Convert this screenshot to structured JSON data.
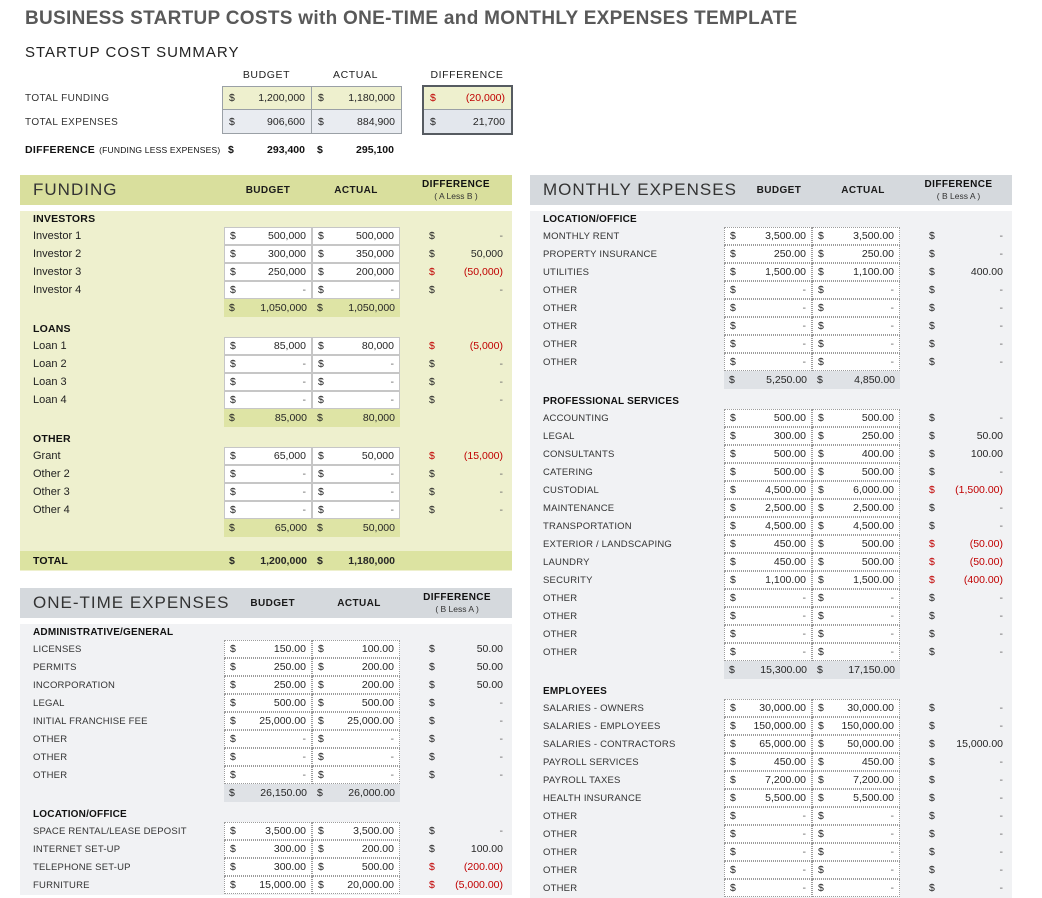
{
  "page": {
    "title": "BUSINESS STARTUP COSTS with ONE-TIME and MONTHLY EXPENSES TEMPLATE"
  },
  "currency": "$",
  "colors": {
    "title_gray": "#595959",
    "negative_red": "#c00000",
    "green_header": "#d9df9d",
    "green_body": "#eef0ce",
    "green_subtotal": "#dee4a5",
    "green_total": "#dce3a1",
    "gray_header": "#d5d9dd",
    "gray_body": "#f1f2f4",
    "gray_subtotal": "#dfe2e6",
    "summary_funding_fill": "#eef0ce",
    "summary_expenses_fill": "#e9ecf1"
  },
  "summary": {
    "title": "STARTUP COST SUMMARY",
    "col_headers": [
      "BUDGET",
      "ACTUAL",
      "DIFFERENCE"
    ],
    "rows": [
      {
        "label": "TOTAL FUNDING",
        "budget": "1,200,000",
        "actual": "1,180,000",
        "diff": "(20,000)",
        "diff_neg": true
      },
      {
        "label": "TOTAL EXPENSES",
        "budget": "906,600",
        "actual": "884,900",
        "diff": "21,700",
        "diff_neg": false
      }
    ],
    "difference_row": {
      "label": "DIFFERENCE",
      "sublabel": "(FUNDING LESS EXPENSES)",
      "budget": "293,400",
      "actual": "295,100"
    }
  },
  "sections": {
    "funding": {
      "title": "FUNDING",
      "theme": "green",
      "headers": {
        "budget": "BUDGET",
        "actual": "ACTUAL",
        "diff": "DIFFERENCE",
        "diff_sub": "( A Less B )"
      },
      "groups": [
        {
          "name": "INVESTORS",
          "rows": [
            {
              "label": "Investor 1",
              "b": "500,000",
              "a": "500,000",
              "d": "-",
              "neg": false
            },
            {
              "label": "Investor 2",
              "b": "300,000",
              "a": "350,000",
              "d": "50,000",
              "neg": false
            },
            {
              "label": "Investor 3",
              "b": "250,000",
              "a": "200,000",
              "d": "(50,000)",
              "neg": true
            },
            {
              "label": "Investor 4",
              "b": "-",
              "a": "-",
              "d": "-",
              "neg": false
            }
          ],
          "subtotal": {
            "b": "1,050,000",
            "a": "1,050,000"
          }
        },
        {
          "name": "LOANS",
          "rows": [
            {
              "label": "Loan 1",
              "b": "85,000",
              "a": "80,000",
              "d": "(5,000)",
              "neg": true
            },
            {
              "label": "Loan 2",
              "b": "-",
              "a": "-",
              "d": "-",
              "neg": false
            },
            {
              "label": "Loan 3",
              "b": "-",
              "a": "-",
              "d": "-",
              "neg": false
            },
            {
              "label": "Loan 4",
              "b": "-",
              "a": "-",
              "d": "-",
              "neg": false
            }
          ],
          "subtotal": {
            "b": "85,000",
            "a": "80,000"
          }
        },
        {
          "name": "OTHER",
          "rows": [
            {
              "label": "Grant",
              "b": "65,000",
              "a": "50,000",
              "d": "(15,000)",
              "neg": true
            },
            {
              "label": "Other 2",
              "b": "-",
              "a": "-",
              "d": "-",
              "neg": false
            },
            {
              "label": "Other 3",
              "b": "-",
              "a": "-",
              "d": "-",
              "neg": false
            },
            {
              "label": "Other 4",
              "b": "-",
              "a": "-",
              "d": "-",
              "neg": false
            }
          ],
          "subtotal": {
            "b": "65,000",
            "a": "50,000"
          }
        }
      ],
      "total": {
        "label": "TOTAL",
        "b": "1,200,000",
        "a": "1,180,000"
      }
    },
    "one_time": {
      "title": "ONE-TIME EXPENSES",
      "theme": "gray",
      "headers": {
        "budget": "BUDGET",
        "actual": "ACTUAL",
        "diff": "DIFFERENCE",
        "diff_sub": "( B Less A )"
      },
      "groups": [
        {
          "name": "ADMINISTRATIVE/GENERAL",
          "rows": [
            {
              "label": "LICENSES",
              "b": "150.00",
              "a": "100.00",
              "d": "50.00",
              "neg": false
            },
            {
              "label": "PERMITS",
              "b": "250.00",
              "a": "200.00",
              "d": "50.00",
              "neg": false
            },
            {
              "label": "INCORPORATION",
              "b": "250.00",
              "a": "200.00",
              "d": "50.00",
              "neg": false
            },
            {
              "label": "LEGAL",
              "b": "500.00",
              "a": "500.00",
              "d": "-",
              "neg": false
            },
            {
              "label": "INITIAL FRANCHISE FEE",
              "b": "25,000.00",
              "a": "25,000.00",
              "d": "-",
              "neg": false
            },
            {
              "label": "OTHER",
              "b": "-",
              "a": "-",
              "d": "-",
              "neg": false
            },
            {
              "label": "OTHER",
              "b": "-",
              "a": "-",
              "d": "-",
              "neg": false
            },
            {
              "label": "OTHER",
              "b": "-",
              "a": "-",
              "d": "-",
              "neg": false
            }
          ],
          "subtotal": {
            "b": "26,150.00",
            "a": "26,000.00"
          }
        },
        {
          "name": "LOCATION/OFFICE",
          "rows": [
            {
              "label": "SPACE RENTAL/LEASE DEPOSIT",
              "b": "3,500.00",
              "a": "3,500.00",
              "d": "-",
              "neg": false
            },
            {
              "label": "INTERNET SET-UP",
              "b": "300.00",
              "a": "200.00",
              "d": "100.00",
              "neg": false
            },
            {
              "label": "TELEPHONE SET-UP",
              "b": "300.00",
              "a": "500.00",
              "d": "(200.00)",
              "neg": true
            },
            {
              "label": "FURNITURE",
              "b": "15,000.00",
              "a": "20,000.00",
              "d": "(5,000.00)",
              "neg": true
            }
          ],
          "subtotal": null
        }
      ],
      "total": null
    },
    "monthly": {
      "title": "MONTHLY EXPENSES",
      "theme": "gray",
      "headers": {
        "budget": "BUDGET",
        "actual": "ACTUAL",
        "diff": "DIFFERENCE",
        "diff_sub": "( B Less A )"
      },
      "groups": [
        {
          "name": "LOCATION/OFFICE",
          "rows": [
            {
              "label": "MONTHLY RENT",
              "b": "3,500.00",
              "a": "3,500.00",
              "d": "-",
              "neg": false
            },
            {
              "label": "PROPERTY INSURANCE",
              "b": "250.00",
              "a": "250.00",
              "d": "-",
              "neg": false
            },
            {
              "label": "UTILITIES",
              "b": "1,500.00",
              "a": "1,100.00",
              "d": "400.00",
              "neg": false
            },
            {
              "label": "OTHER",
              "b": "-",
              "a": "-",
              "d": "-",
              "neg": false
            },
            {
              "label": "OTHER",
              "b": "-",
              "a": "-",
              "d": "-",
              "neg": false
            },
            {
              "label": "OTHER",
              "b": "-",
              "a": "-",
              "d": "-",
              "neg": false
            },
            {
              "label": "OTHER",
              "b": "-",
              "a": "-",
              "d": "-",
              "neg": false
            },
            {
              "label": "OTHER",
              "b": "-",
              "a": "-",
              "d": "-",
              "neg": false
            }
          ],
          "subtotal": {
            "b": "5,250.00",
            "a": "4,850.00"
          }
        },
        {
          "name": "PROFESSIONAL SERVICES",
          "rows": [
            {
              "label": "ACCOUNTING",
              "b": "500.00",
              "a": "500.00",
              "d": "-",
              "neg": false
            },
            {
              "label": "LEGAL",
              "b": "300.00",
              "a": "250.00",
              "d": "50.00",
              "neg": false
            },
            {
              "label": "CONSULTANTS",
              "b": "500.00",
              "a": "400.00",
              "d": "100.00",
              "neg": false
            },
            {
              "label": "CATERING",
              "b": "500.00",
              "a": "500.00",
              "d": "-",
              "neg": false
            },
            {
              "label": "CUSTODIAL",
              "b": "4,500.00",
              "a": "6,000.00",
              "d": "(1,500.00)",
              "neg": true
            },
            {
              "label": "MAINTENANCE",
              "b": "2,500.00",
              "a": "2,500.00",
              "d": "-",
              "neg": false
            },
            {
              "label": "TRANSPORTATION",
              "b": "4,500.00",
              "a": "4,500.00",
              "d": "-",
              "neg": false
            },
            {
              "label": "EXTERIOR / LANDSCAPING",
              "b": "450.00",
              "a": "500.00",
              "d": "(50.00)",
              "neg": true
            },
            {
              "label": "LAUNDRY",
              "b": "450.00",
              "a": "500.00",
              "d": "(50.00)",
              "neg": true
            },
            {
              "label": "SECURITY",
              "b": "1,100.00",
              "a": "1,500.00",
              "d": "(400.00)",
              "neg": true
            },
            {
              "label": "OTHER",
              "b": "-",
              "a": "-",
              "d": "-",
              "neg": false
            },
            {
              "label": "OTHER",
              "b": "-",
              "a": "-",
              "d": "-",
              "neg": false
            },
            {
              "label": "OTHER",
              "b": "-",
              "a": "-",
              "d": "-",
              "neg": false
            },
            {
              "label": "OTHER",
              "b": "-",
              "a": "-",
              "d": "-",
              "neg": false
            }
          ],
          "subtotal": {
            "b": "15,300.00",
            "a": "17,150.00"
          }
        },
        {
          "name": "EMPLOYEES",
          "rows": [
            {
              "label": "SALARIES - OWNERS",
              "b": "30,000.00",
              "a": "30,000.00",
              "d": "-",
              "neg": false
            },
            {
              "label": "SALARIES - EMPLOYEES",
              "b": "150,000.00",
              "a": "150,000.00",
              "d": "-",
              "neg": false
            },
            {
              "label": "SALARIES - CONTRACTORS",
              "b": "65,000.00",
              "a": "50,000.00",
              "d": "15,000.00",
              "neg": false
            },
            {
              "label": "PAYROLL SERVICES",
              "b": "450.00",
              "a": "450.00",
              "d": "-",
              "neg": false
            },
            {
              "label": "PAYROLL TAXES",
              "b": "7,200.00",
              "a": "7,200.00",
              "d": "-",
              "neg": false
            },
            {
              "label": "HEALTH INSURANCE",
              "b": "5,500.00",
              "a": "5,500.00",
              "d": "-",
              "neg": false
            },
            {
              "label": "OTHER",
              "b": "-",
              "a": "-",
              "d": "-",
              "neg": false
            },
            {
              "label": "OTHER",
              "b": "-",
              "a": "-",
              "d": "-",
              "neg": false
            },
            {
              "label": "OTHER",
              "b": "-",
              "a": "-",
              "d": "-",
              "neg": false
            },
            {
              "label": "OTHER",
              "b": "-",
              "a": "-",
              "d": "-",
              "neg": false
            },
            {
              "label": "OTHER",
              "b": "-",
              "a": "-",
              "d": "-",
              "neg": false
            }
          ],
          "subtotal": null
        }
      ],
      "total": null
    }
  }
}
